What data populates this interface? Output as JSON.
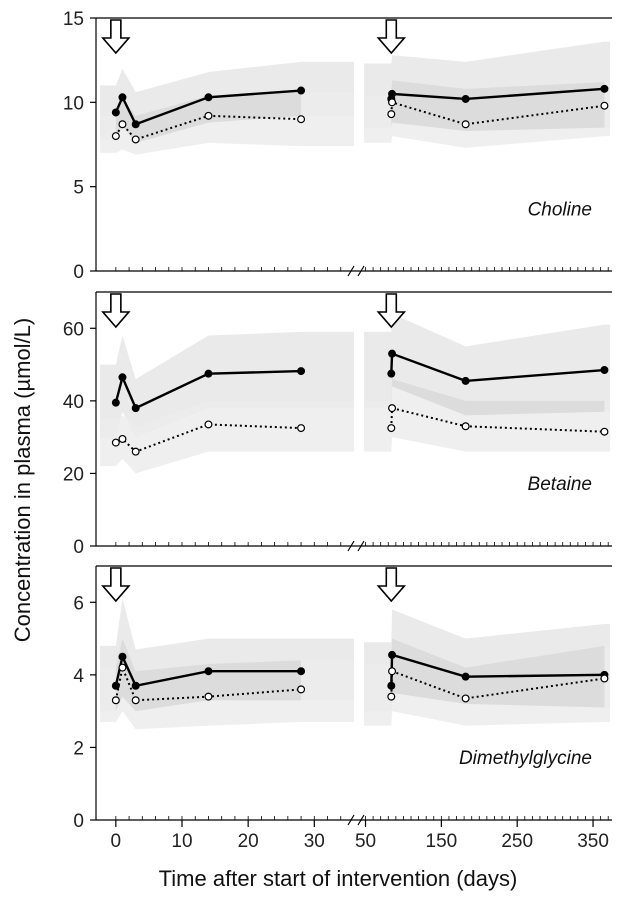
{
  "chart_data": {
    "type": "line",
    "xlabel": "Time after start of intervention (days)",
    "ylabel": "Concentration in plasma (µmol/L)",
    "x_segments": [
      {
        "range": [
          -3,
          36
        ],
        "ticks": [
          0,
          10,
          20,
          30
        ],
        "tick_labels": [
          "0",
          "10",
          "20",
          "30"
        ]
      },
      {
        "range": [
          48,
          375
        ],
        "ticks": [
          50,
          150,
          250,
          350
        ],
        "tick_labels": [
          "50",
          "150",
          "250",
          "350"
        ]
      }
    ],
    "arrows_at_days": [
      0,
      84
    ],
    "panels": [
      {
        "name": "Choline",
        "ylim": [
          0,
          15
        ],
        "yticks": [
          0,
          5,
          10,
          15
        ],
        "ytick_labels": [
          "0",
          "5",
          "10",
          "15"
        ],
        "series": [
          {
            "style": "solid-filled",
            "x": [
              0,
              1,
              3,
              14,
              28,
              84,
              85,
              182,
              365
            ],
            "y": [
              9.4,
              10.3,
              8.7,
              10.3,
              10.7,
              10.2,
              10.5,
              10.2,
              10.8
            ]
          },
          {
            "style": "dotted-open",
            "x": [
              0,
              1,
              3,
              14,
              28,
              84,
              85,
              182,
              365
            ],
            "y": [
              8.0,
              8.7,
              7.8,
              9.2,
              9.0,
              9.3,
              10.0,
              8.7,
              9.8
            ]
          }
        ],
        "bands": [
          {
            "upper": [
              11.0,
              12.0,
              10.6,
              11.8,
              12.4,
              12.3,
              12.8,
              12.4,
              13.6
            ],
            "lower": [
              7.8,
              8.6,
              7.6,
              8.8,
              9.2,
              8.5,
              8.8,
              8.3,
              8.5
            ]
          },
          {
            "upper": [
              9.2,
              10.2,
              9.2,
              10.4,
              10.6,
              10.4,
              11.3,
              10.8,
              11.2
            ],
            "lower": [
              7.0,
              7.2,
              6.9,
              7.6,
              7.4,
              7.6,
              8.0,
              7.3,
              8.0
            ]
          }
        ]
      },
      {
        "name": "Betaine",
        "ylim": [
          0,
          70
        ],
        "yticks": [
          0,
          20,
          40,
          60
        ],
        "ytick_labels": [
          "0",
          "20",
          "40",
          "60"
        ],
        "series": [
          {
            "style": "solid-filled",
            "x": [
              0,
              1,
              3,
              14,
              28,
              84,
              85,
              182,
              365
            ],
            "y": [
              39.5,
              46.5,
              38.0,
              47.5,
              48.2,
              47.5,
              53.0,
              45.5,
              48.5
            ]
          },
          {
            "style": "dotted-open",
            "x": [
              0,
              1,
              3,
              14,
              28,
              84,
              85,
              182,
              365
            ],
            "y": [
              28.5,
              29.5,
              26.0,
              33.5,
              32.5,
              32.5,
              38.0,
              33.0,
              31.5
            ]
          }
        ],
        "bands": [
          {
            "upper": [
              50,
              58,
              46,
              58,
              59,
              59,
              64,
              55,
              61
            ],
            "lower": [
              30,
              37,
              30,
              38,
              38,
              38,
              44,
              36,
              37
            ]
          },
          {
            "upper": [
              35,
              36,
              33,
              40,
              40,
              40,
              46,
              40,
              40
            ],
            "lower": [
              22,
              24,
              20,
              26,
              26,
              26,
              30,
              26,
              26
            ]
          }
        ]
      },
      {
        "name": "Dimethylglycine",
        "ylim": [
          0,
          7
        ],
        "yticks": [
          0,
          2,
          4,
          6
        ],
        "ytick_labels": [
          "0",
          "2",
          "4",
          "6"
        ],
        "series": [
          {
            "style": "solid-filled",
            "x": [
              0,
              1,
              3,
              14,
              28,
              84,
              85,
              182,
              365
            ],
            "y": [
              3.7,
              4.5,
              3.7,
              4.1,
              4.1,
              3.7,
              4.55,
              3.95,
              4.0
            ]
          },
          {
            "style": "dotted-open",
            "x": [
              0,
              1,
              3,
              14,
              28,
              84,
              85,
              182,
              365
            ],
            "y": [
              3.3,
              4.2,
              3.3,
              3.4,
              3.6,
              3.4,
              4.1,
              3.35,
              3.9
            ]
          }
        ],
        "bands": [
          {
            "upper": [
              4.8,
              6.1,
              4.7,
              5.0,
              5.0,
              4.9,
              5.8,
              5.0,
              5.4
            ],
            "lower": [
              3.0,
              3.4,
              3.0,
              3.3,
              3.3,
              3.0,
              3.5,
              3.2,
              3.1
            ]
          },
          {
            "upper": [
              4.2,
              5.0,
              4.1,
              4.3,
              4.4,
              4.3,
              5.0,
              4.2,
              4.8
            ],
            "lower": [
              2.7,
              3.0,
              2.5,
              2.6,
              2.7,
              2.6,
              3.0,
              2.6,
              2.7
            ]
          }
        ]
      }
    ]
  }
}
